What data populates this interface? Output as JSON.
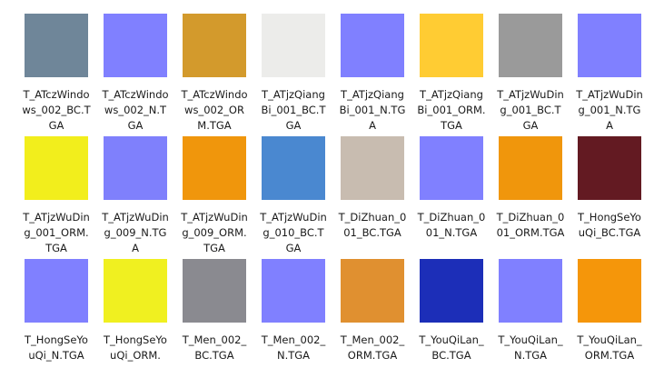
{
  "files": [
    {
      "name": "T_ATczWindows_002_BC.TGA",
      "color": "#6f8699"
    },
    {
      "name": "T_ATczWindows_002_N.TGA",
      "color": "#8080ff"
    },
    {
      "name": "T_ATczWindows_002_ORM.TGA",
      "color": "#d39a2c"
    },
    {
      "name": "T_ATjzQiangBi_001_BC.TGA",
      "color": "#ececea"
    },
    {
      "name": "T_ATjzQiangBi_001_N.TGA",
      "color": "#8080ff"
    },
    {
      "name": "T_ATjzQiangBi_001_ORM.TGA",
      "color": "#ffcc33"
    },
    {
      "name": "T_ATjzWuDing_001_BC.TGA",
      "color": "#9a9a9a"
    },
    {
      "name": "T_ATjzWuDing_001_N.TGA",
      "color": "#8080ff"
    },
    {
      "name": "T_ATjzWuDing_001_ORM.TGA",
      "color": "#f2ee1c"
    },
    {
      "name": "T_ATjzWuDing_009_N.TGA",
      "color": "#7f80fc"
    },
    {
      "name": "T_ATjzWuDing_009_ORM.TGA",
      "color": "#f0960c"
    },
    {
      "name": "T_ATjzWuDing_010_BC.TGA",
      "color": "#4a88d0"
    },
    {
      "name": "T_DiZhuan_001_BC.TGA",
      "color": "#c8bcb0"
    },
    {
      "name": "T_DiZhuan_001_N.TGA",
      "color": "#8080ff"
    },
    {
      "name": "T_DiZhuan_001_ORM.TGA",
      "color": "#f0960c"
    },
    {
      "name": "T_HongSeYouQi_BC.TGA",
      "color": "#631a22"
    },
    {
      "name": "T_HongSeYouQi_N.TGA",
      "color": "#8080ff"
    },
    {
      "name": "T_HongSeYouQi_ORM.",
      "color": "#f0f020"
    },
    {
      "name": "T_Men_002_BC.TGA",
      "color": "#8a8a90"
    },
    {
      "name": "T_Men_002_N.TGA",
      "color": "#8080ff"
    },
    {
      "name": "T_Men_002_ORM.TGA",
      "color": "#e09030"
    },
    {
      "name": "T_YouQiLan_BC.TGA",
      "color": "#1c2eb8"
    },
    {
      "name": "T_YouQiLan_N.TGA",
      "color": "#8080ff"
    },
    {
      "name": "T_YouQiLan_ORM.TGA",
      "color": "#f5960a"
    }
  ]
}
